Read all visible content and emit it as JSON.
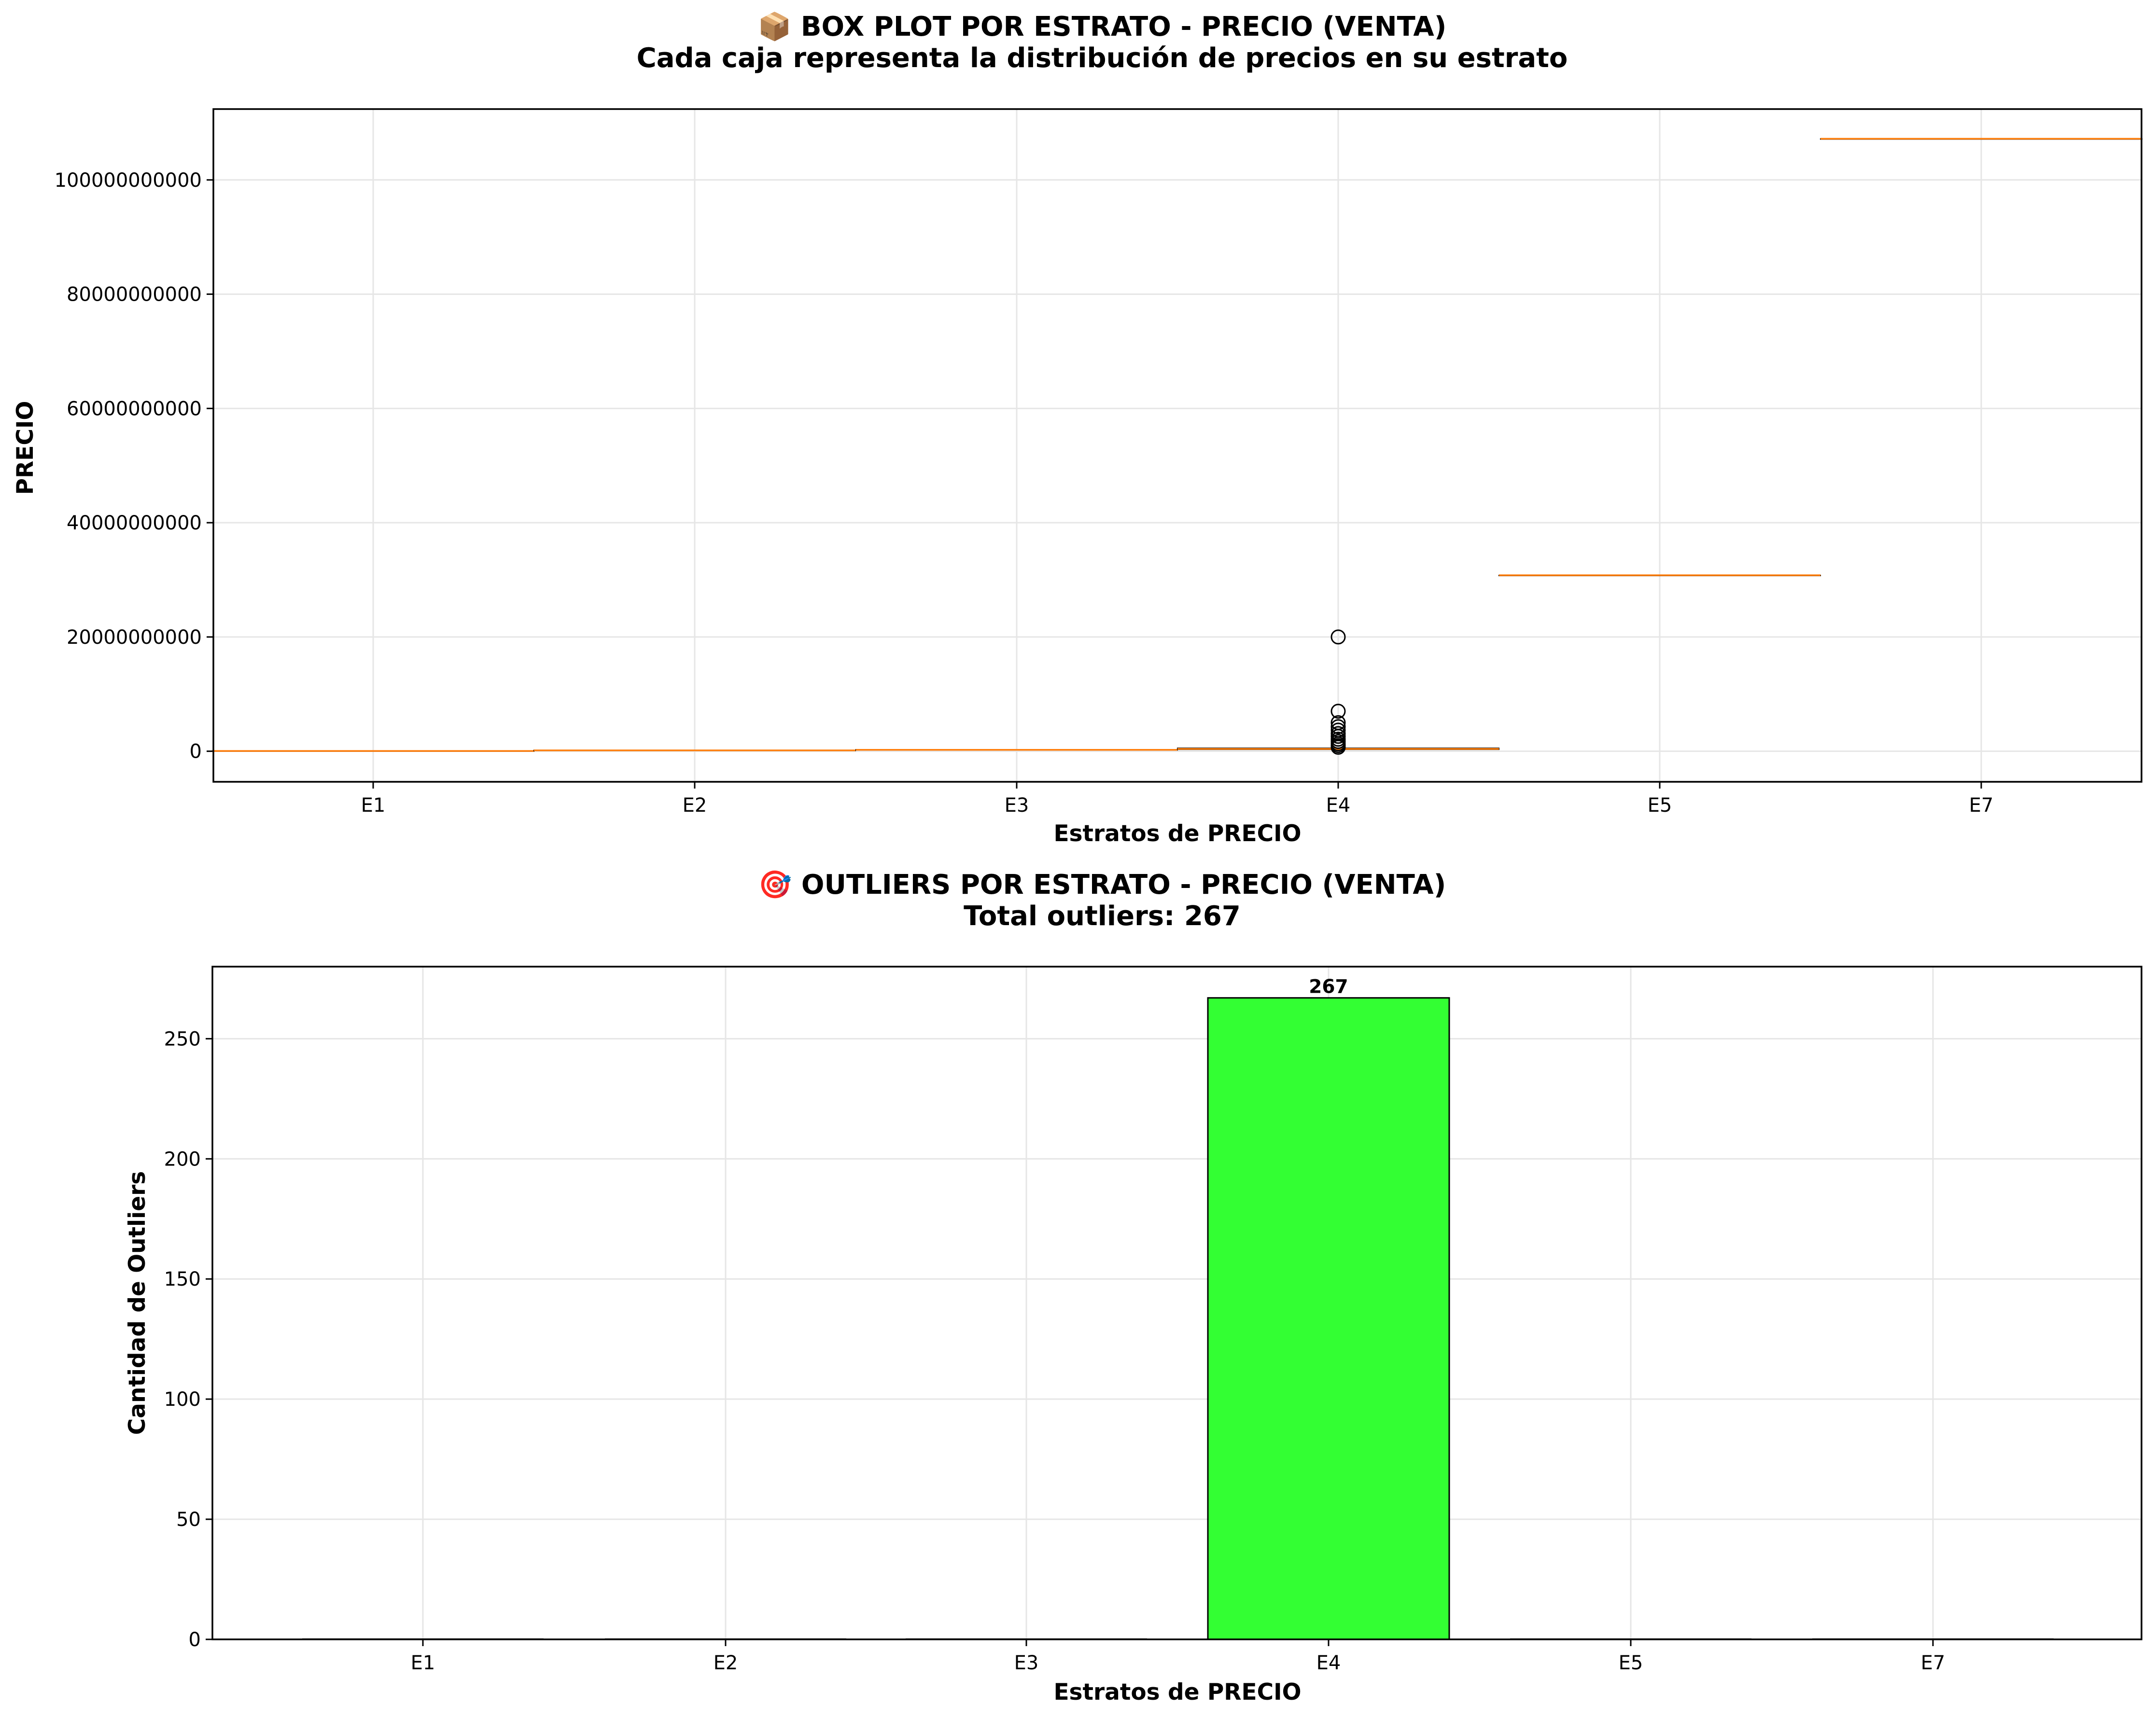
{
  "chart_data": [
    {
      "type": "box",
      "title": "📦 BOX PLOT POR ESTRATO - PRECIO (VENTA)",
      "subtitle": "Cada caja representa la distribución de precios en su estrato",
      "xlabel": "Estratos de PRECIO",
      "ylabel": "PRECIO",
      "categories": [
        "E1",
        "E2",
        "E3",
        "E4",
        "E5",
        "E7"
      ],
      "ylim": [
        -5350000000,
        112400000000
      ],
      "yticks": [
        0,
        20000000000,
        40000000000,
        60000000000,
        80000000000,
        100000000000
      ],
      "ytick_labels": [
        "0",
        "20000000000",
        "40000000000",
        "60000000000",
        "80000000000",
        "100000000000"
      ],
      "medians": [
        50000000,
        150000000,
        250000000,
        400000000,
        30800000000,
        107200000000
      ],
      "q1": [
        30000000,
        120000000,
        200000000,
        300000000,
        30800000000,
        107200000000
      ],
      "q3": [
        70000000,
        180000000,
        300000000,
        550000000,
        30800000000,
        107200000000
      ],
      "outliers": [
        [],
        [],
        [],
        [
          20000000000,
          7000000000,
          5000000000,
          4300000000,
          3700000000,
          3100000000,
          2600000000,
          2100000000,
          1700000000,
          1300000000,
          1000000000,
          700000000
        ],
        [],
        []
      ],
      "grid": true,
      "colors": {
        "median": "#ff7f0e",
        "box": "#000000"
      }
    },
    {
      "type": "bar",
      "title": "🎯 OUTLIERS POR ESTRATO - PRECIO (VENTA)",
      "subtitle": "Total outliers: 267",
      "xlabel": "Estratos de PRECIO",
      "ylabel": "Cantidad de Outliers",
      "categories": [
        "E1",
        "E2",
        "E3",
        "E4",
        "E5",
        "E7"
      ],
      "values": [
        0,
        0,
        0,
        267,
        0,
        0
      ],
      "data_labels": [
        "",
        "",
        "",
        "267",
        "",
        ""
      ],
      "ylim": [
        0,
        280
      ],
      "yticks": [
        0,
        50,
        100,
        150,
        200,
        250
      ],
      "grid": true,
      "colors": {
        "bar_highlight": "#33ff33",
        "edge": "#000000"
      }
    }
  ]
}
